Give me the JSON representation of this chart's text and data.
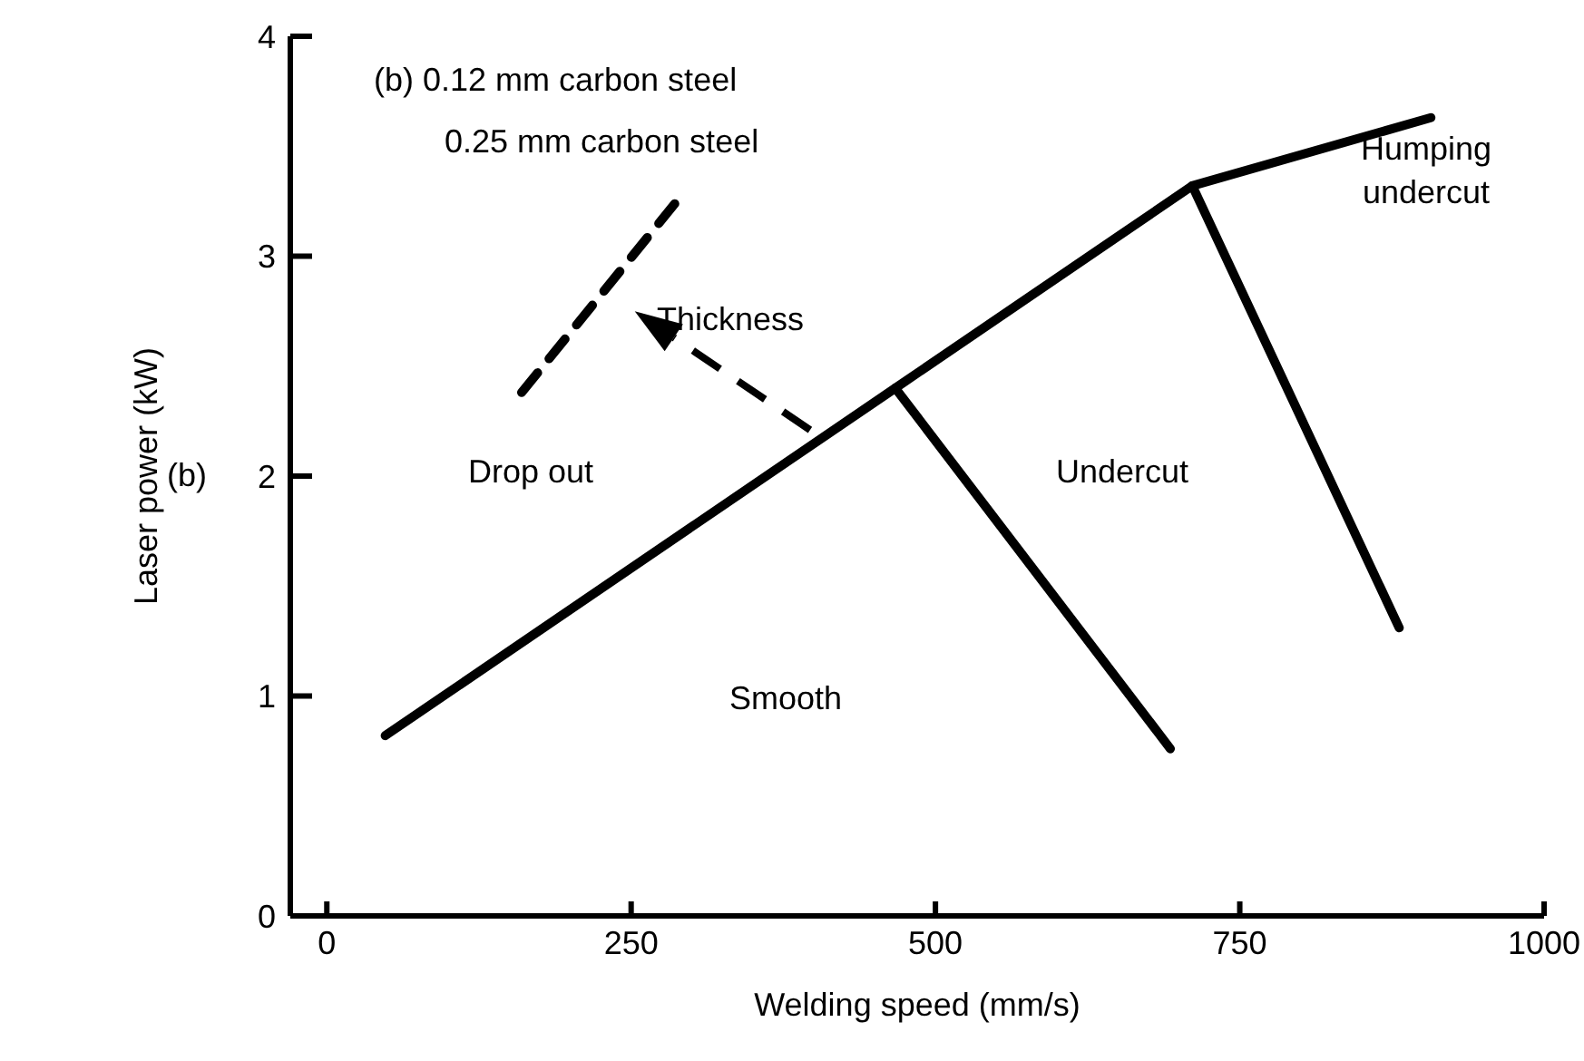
{
  "chart_data": {
    "type": "line",
    "xlabel": "Welding speed (mm/s)",
    "ylabel": "Laser power (kW)",
    "xlim": [
      -30,
      1000
    ],
    "xticks": [
      0,
      250,
      500,
      750,
      1000
    ],
    "ylim": [
      0,
      4
    ],
    "yticks": [
      0,
      1,
      2,
      3,
      4
    ],
    "grid": false,
    "marker": "none",
    "series": [
      {
        "color": "#000000",
        "line_style": "solid",
        "x": [
          48,
          467,
          711,
          907
        ],
        "values": [
          0.82,
          2.4,
          3.32,
          3.63
        ]
      },
      {
        "color": "#000000",
        "line_style": "solid",
        "x": [
          467,
          693
        ],
        "values": [
          2.4,
          0.76
        ]
      },
      {
        "color": "#000000",
        "line_style": "solid",
        "x": [
          711,
          881
        ],
        "values": [
          3.32,
          1.31
        ]
      },
      {
        "color": "#000000",
        "line_style": "dashed",
        "x": [
          160,
          289
        ],
        "values": [
          2.38,
          3.26
        ]
      }
    ],
    "annotations": [
      "(b) 0.12 mm carbon steel",
      "0.25 mm carbon steel",
      "(b)",
      "Drop out",
      "Thickness",
      "Undercut",
      "Smooth",
      "Humping undercut"
    ]
  }
}
